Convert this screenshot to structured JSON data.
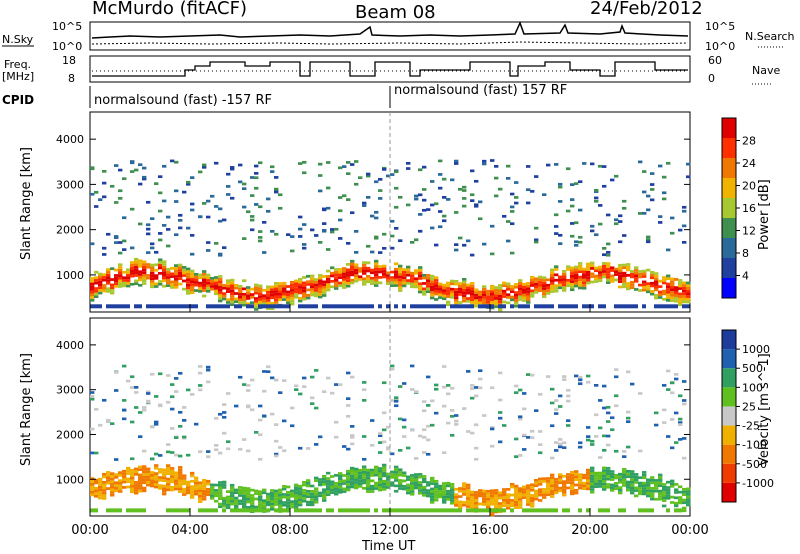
{
  "header": {
    "title": "McMurdo (fitACF)",
    "beam": "Beam 08",
    "date": "24/Feb/2012"
  },
  "sky_panel": {
    "left_label": "N.Sky",
    "right_label": "N.Search",
    "left_ticks": [
      "10^5",
      "10^0"
    ],
    "right_ticks": [
      "10^5",
      "10^0"
    ]
  },
  "freq_panel": {
    "left_label_1": "Freq.",
    "left_label_2": "[MHz]",
    "right_label": "Nave",
    "left_ticks": [
      "18",
      "8"
    ],
    "right_ticks": [
      "60",
      "0"
    ]
  },
  "cpid": {
    "label": "CPID",
    "segments": [
      "normalsound (fast) -157 RF",
      "normalsound (fast) 157 RF"
    ]
  },
  "colors": {
    "power": [
      "#0000ff",
      "#2040a0",
      "#2a6a9a",
      "#3f8f4f",
      "#a8c832",
      "#f0b400",
      "#f07800",
      "#ff3000",
      "#e00000"
    ],
    "velocity": [
      "#e00000",
      "#f03c00",
      "#f07800",
      "#f0b000",
      "#c8c8c8",
      "#60c020",
      "#30a060",
      "#2060b0",
      "#1e3c9c"
    ]
  },
  "chart_data": [
    {
      "type": "heatmap",
      "title": "",
      "ylabel": "Slant Range [km]",
      "xlabel": "",
      "ylim": [
        180,
        4600
      ],
      "xlim": [
        0,
        24
      ],
      "yticks": [
        1000,
        2000,
        3000,
        4000
      ],
      "colorbar": {
        "label": "Power [dB]",
        "ticks": [
          "4",
          "8",
          "12",
          "16",
          "20",
          "24",
          "28"
        ],
        "range": [
          0,
          32
        ]
      }
    },
    {
      "type": "heatmap",
      "title": "",
      "ylabel": "Slant Range [km]",
      "xlabel": "Time UT",
      "ylim": [
        180,
        4600
      ],
      "xlim": [
        0,
        24
      ],
      "yticks": [
        1000,
        2000,
        3000,
        4000
      ],
      "xticks": [
        "00:00",
        "04:00",
        "08:00",
        "12:00",
        "16:00",
        "20:00",
        "00:00"
      ],
      "colorbar": {
        "label": "Velocity [m s^-1]",
        "ticks": [
          "-1000",
          "-500",
          "-100",
          "-25",
          "25",
          "100",
          "500",
          "1000"
        ],
        "range": [
          -1000,
          1000
        ]
      }
    }
  ]
}
